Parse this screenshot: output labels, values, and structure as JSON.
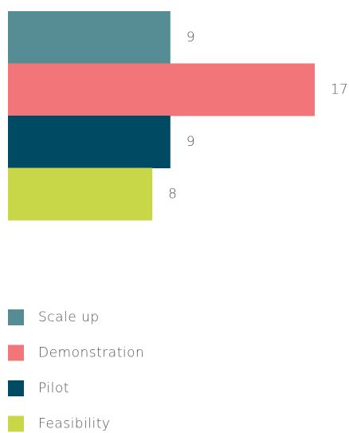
{
  "chart_data": {
    "type": "bar",
    "orientation": "horizontal",
    "categories": [
      "Scale up",
      "Demonstration",
      "Pilot",
      "Feasibility"
    ],
    "values": [
      9,
      17,
      9,
      8
    ],
    "colors": [
      "#568d95",
      "#f27579",
      "#004a63",
      "#c8d747"
    ],
    "legend": "bottom-left"
  }
}
